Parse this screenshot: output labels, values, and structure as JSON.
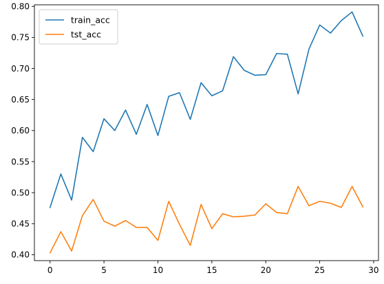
{
  "chart_data": {
    "type": "line",
    "title": "",
    "xlabel": "",
    "ylabel": "",
    "xlim": [
      -1.45,
      30.45
    ],
    "ylim": [
      0.3905,
      0.8025
    ],
    "xticks": [
      0,
      5,
      10,
      15,
      20,
      25,
      30
    ],
    "xtick_labels": [
      "0",
      "5",
      "10",
      "15",
      "20",
      "25",
      "30"
    ],
    "yticks": [
      0.4,
      0.45,
      0.5,
      0.55,
      0.6,
      0.65,
      0.7,
      0.75,
      0.8
    ],
    "ytick_labels": [
      "0.40",
      "0.45",
      "0.50",
      "0.55",
      "0.60",
      "0.65",
      "0.70",
      "0.75",
      "0.80"
    ],
    "grid": false,
    "legend_position": "top-left",
    "x": [
      0,
      1,
      2,
      3,
      4,
      5,
      6,
      7,
      8,
      9,
      10,
      11,
      12,
      13,
      14,
      15,
      16,
      17,
      18,
      19,
      20,
      21,
      22,
      23,
      24,
      25,
      26,
      27,
      28,
      29
    ],
    "series": [
      {
        "name": "train_acc",
        "color": "#1f77b4",
        "values": [
          0.476,
          0.53,
          0.488,
          0.589,
          0.566,
          0.619,
          0.6,
          0.633,
          0.594,
          0.642,
          0.592,
          0.655,
          0.661,
          0.618,
          0.677,
          0.656,
          0.664,
          0.719,
          0.697,
          0.689,
          0.69,
          0.724,
          0.723,
          0.659,
          0.731,
          0.77,
          0.757,
          0.777,
          0.791,
          0.752
        ]
      },
      {
        "name": "tst_acc",
        "color": "#ff7f0e",
        "values": [
          0.403,
          0.437,
          0.406,
          0.463,
          0.489,
          0.454,
          0.446,
          0.455,
          0.444,
          0.444,
          0.423,
          0.486,
          0.449,
          0.415,
          0.481,
          0.442,
          0.466,
          0.461,
          0.462,
          0.464,
          0.482,
          0.468,
          0.466,
          0.51,
          0.479,
          0.486,
          0.483,
          0.476,
          0.51,
          0.477
        ]
      }
    ]
  }
}
